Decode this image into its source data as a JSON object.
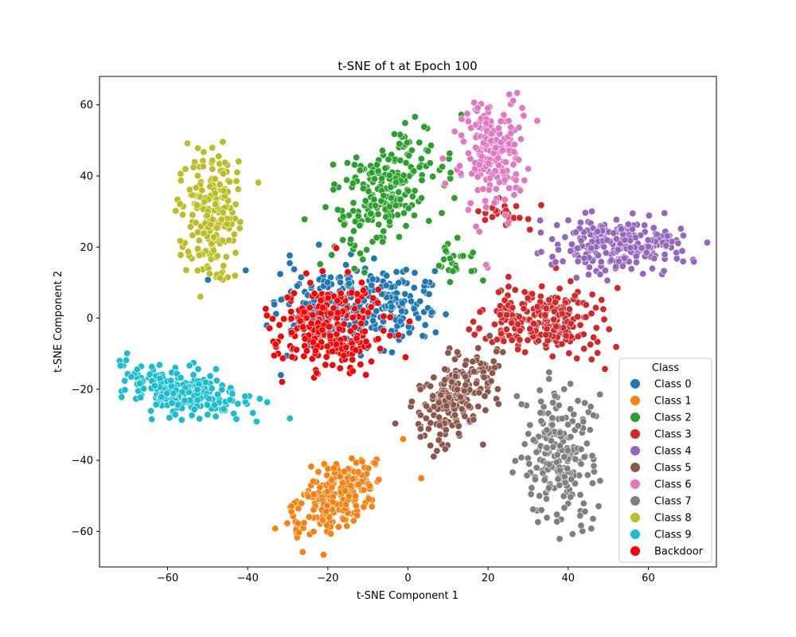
{
  "chart_data": {
    "type": "scatter",
    "title": "t-SNE of t at Epoch 100",
    "xlabel": "t-SNE Component 1",
    "ylabel": "t-SNE Component 2",
    "xlim": [
      -77,
      77
    ],
    "ylim": [
      -70,
      68
    ],
    "xticks": [
      -60,
      -40,
      -20,
      0,
      20,
      40,
      60
    ],
    "yticks": [
      -60,
      -40,
      -20,
      0,
      20,
      40,
      60
    ],
    "grid": false,
    "legend_title": "Class",
    "legend_position": "lower-right",
    "series": [
      {
        "name": "Class 0",
        "color": "#1f77b4",
        "clusters": [
          {
            "cx": -14,
            "cy": 2,
            "sx": 9,
            "sy": 6,
            "n": 260
          },
          {
            "cx": -2,
            "cy": 5,
            "sx": 4,
            "sy": 4,
            "n": 60
          }
        ]
      },
      {
        "name": "Class 1",
        "color": "#ff7f0e",
        "clusters": [
          {
            "cx": -18,
            "cy": -50,
            "sx": 4,
            "sy": 7,
            "rot": -50,
            "n": 220
          }
        ]
      },
      {
        "name": "Class 2",
        "color": "#2ca02c",
        "clusters": [
          {
            "cx": -6,
            "cy": 36,
            "sx": 5,
            "sy": 9,
            "rot": -35,
            "n": 230
          },
          {
            "cx": 12,
            "cy": 16,
            "sx": 4,
            "sy": 3,
            "n": 25
          }
        ]
      },
      {
        "name": "Class 3",
        "color": "#d62728",
        "clusters": [
          {
            "cx": 35,
            "cy": 0,
            "sx": 7,
            "sy": 5,
            "n": 230
          },
          {
            "cx": 24,
            "cy": 30,
            "sx": 3,
            "sy": 2,
            "n": 25
          }
        ]
      },
      {
        "name": "Class 4",
        "color": "#9467bd",
        "clusters": [
          {
            "cx": 52,
            "cy": 21,
            "sx": 8,
            "sy": 4,
            "n": 240
          }
        ]
      },
      {
        "name": "Class 5",
        "color": "#8c564b",
        "clusters": [
          {
            "cx": 12,
            "cy": -22,
            "sx": 4,
            "sy": 8,
            "rot": -35,
            "n": 220
          }
        ]
      },
      {
        "name": "Class 6",
        "color": "#e377c2",
        "clusters": [
          {
            "cx": 21,
            "cy": 47,
            "sx": 4,
            "sy": 8,
            "n": 220
          }
        ]
      },
      {
        "name": "Class 7",
        "color": "#7f7f7f",
        "clusters": [
          {
            "cx": 38,
            "cy": -38,
            "sx": 4,
            "sy": 9,
            "n": 220
          }
        ]
      },
      {
        "name": "Class 8",
        "color": "#bcbd22",
        "clusters": [
          {
            "cx": -49,
            "cy": 29,
            "sx": 3.5,
            "sy": 9,
            "n": 210
          }
        ]
      },
      {
        "name": "Class 9",
        "color": "#17becf",
        "clusters": [
          {
            "cx": -56,
            "cy": -21,
            "sx": 9,
            "sy": 3,
            "rot": -15,
            "n": 230
          }
        ]
      },
      {
        "name": "Backdoor",
        "color": "#ff0000",
        "clusters": [
          {
            "cx": -20,
            "cy": -3,
            "sx": 7,
            "sy": 6,
            "n": 260
          }
        ]
      }
    ]
  }
}
